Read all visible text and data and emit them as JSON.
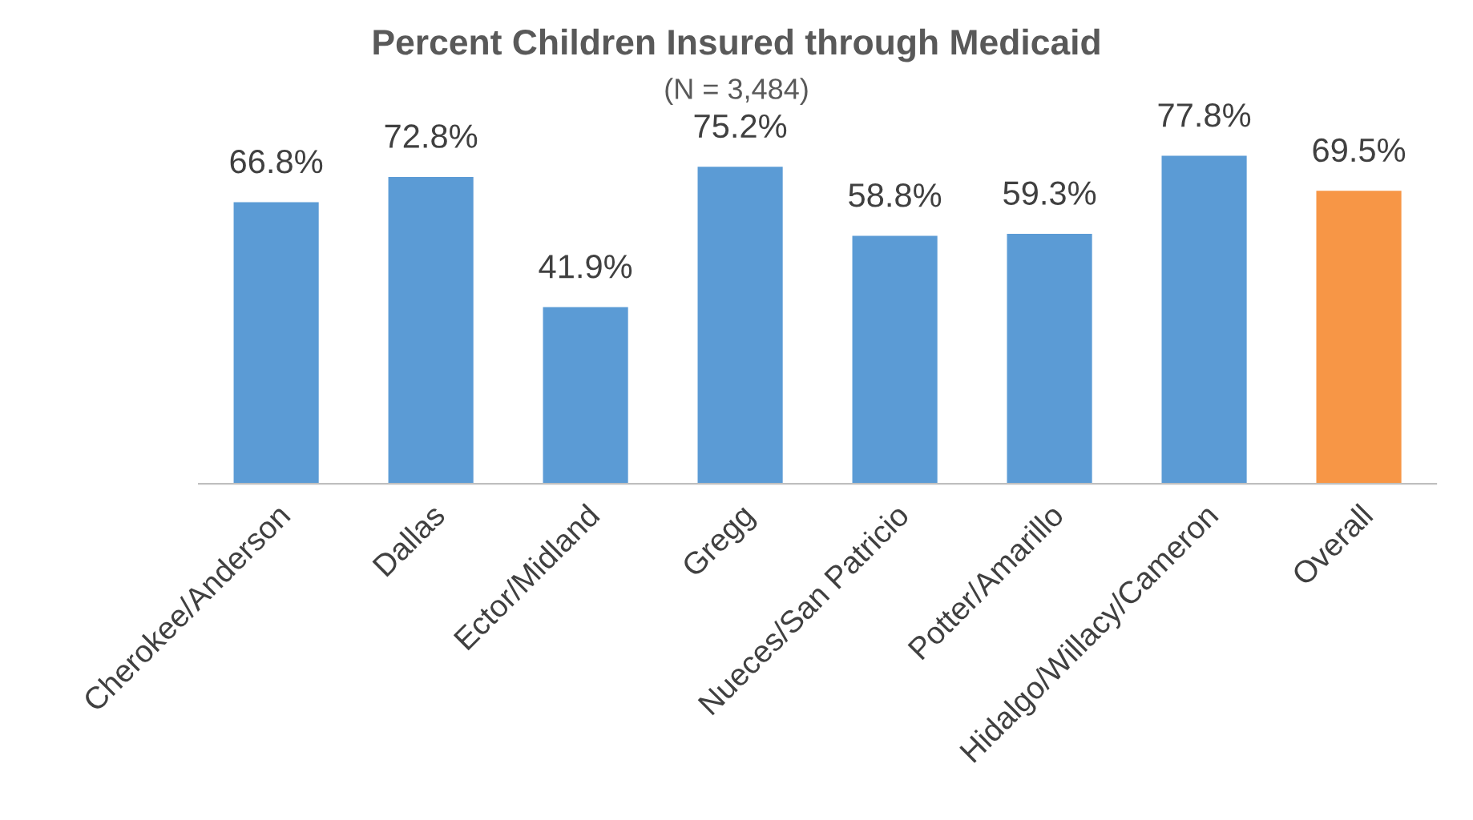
{
  "chart_data": {
    "type": "bar",
    "title": "Percent Children Insured through Medicaid",
    "subtitle": "(N = 3,484)",
    "categories": [
      "Cherokee/Anderson",
      "Dallas",
      "Ector/Midland",
      "Gregg",
      "Nueces/San Patricio",
      "Potter/Amarillo",
      "Hidalgo/Willacy/Cameron",
      "Overall"
    ],
    "values": [
      66.8,
      72.8,
      41.9,
      75.2,
      58.8,
      59.3,
      77.8,
      69.5
    ],
    "value_labels": [
      "66.8%",
      "72.8%",
      "41.9%",
      "75.2%",
      "58.8%",
      "59.3%",
      "77.8%",
      "69.5%"
    ],
    "colors": [
      "#5b9bd5",
      "#5b9bd5",
      "#5b9bd5",
      "#5b9bd5",
      "#5b9bd5",
      "#5b9bd5",
      "#5b9bd5",
      "#f79646"
    ],
    "grid": false,
    "tick_labels": "x"
  }
}
